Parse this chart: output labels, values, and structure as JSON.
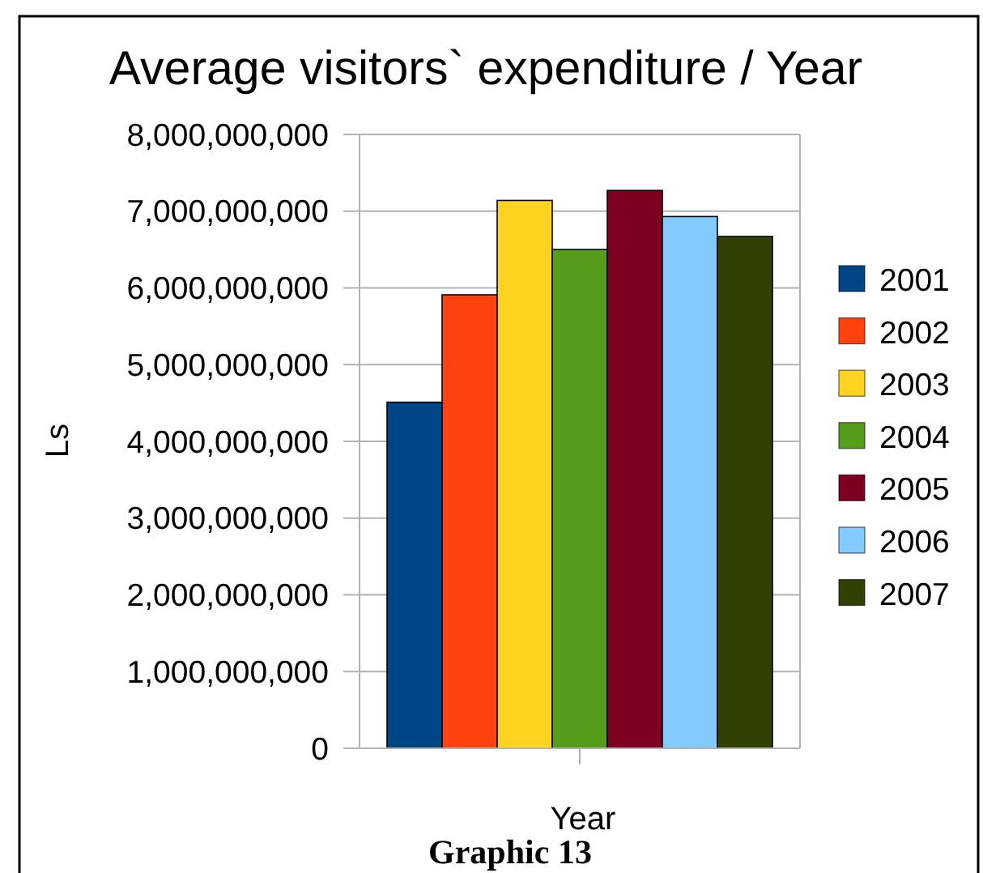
{
  "chart_data": {
    "type": "bar",
    "title": "Average visitors` expenditure / Year",
    "xlabel": "Year",
    "ylabel": "Ls",
    "annotations": [
      "Graphic 13"
    ],
    "categories": [
      null
    ],
    "series": [
      {
        "name": "2001",
        "color": "#004586",
        "values": [
          4510000000
        ]
      },
      {
        "name": "2002",
        "color": "#ff420e",
        "values": [
          5910000000
        ]
      },
      {
        "name": "2003",
        "color": "#ffd320",
        "values": [
          7140000000
        ]
      },
      {
        "name": "2004",
        "color": "#579d1c",
        "values": [
          6500000000
        ]
      },
      {
        "name": "2005",
        "color": "#7e0021",
        "values": [
          7270000000
        ]
      },
      {
        "name": "2006",
        "color": "#83caff",
        "values": [
          6930000000
        ]
      },
      {
        "name": "2007",
        "color": "#314004",
        "values": [
          6670000000
        ]
      }
    ],
    "ylim": [
      0,
      8000000000
    ],
    "yticks": [
      0,
      {
        "value": 1000000000,
        "label": "1,000,000,000"
      },
      {
        "value": 2000000000,
        "label": "2,000,000,000"
      },
      {
        "value": 3000000000,
        "label": "3,000,000,000"
      },
      {
        "value": 4000000000,
        "label": "4,000,000,000"
      },
      {
        "value": 5000000000,
        "label": "5,000,000,000"
      },
      {
        "value": 6000000000,
        "label": "6,000,000,000"
      },
      {
        "value": 7000000000,
        "label": "7,000,000,000"
      },
      {
        "value": 8000000000,
        "label": "8,000,000,000"
      }
    ],
    "grid": "y",
    "legend": "right"
  }
}
